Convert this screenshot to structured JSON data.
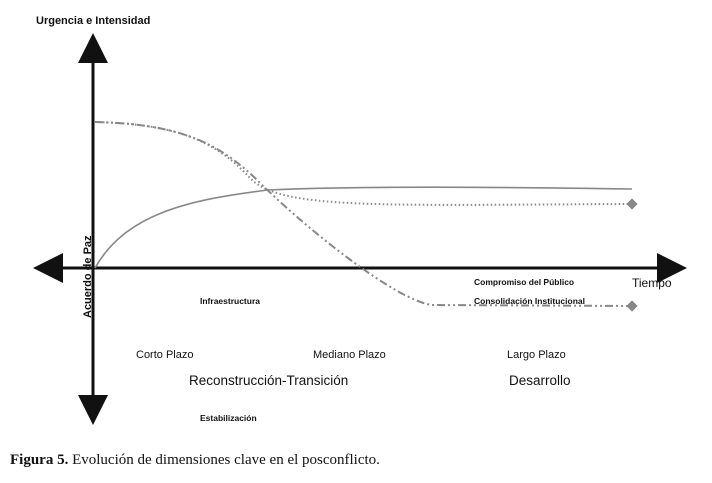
{
  "diagram": {
    "y_axis_title": "Urgencia e Intensidad",
    "x_axis_title": "Tiempo",
    "origin_label": "Acuerdo de Paz",
    "phase_labels": [
      "Corto Plazo",
      "Mediano Plazo",
      "Largo Plazo"
    ],
    "stage_labels": [
      "Reconstrucción-Transición",
      "Desarrollo"
    ],
    "curve_labels": {
      "infraestructura": "Infraestructura",
      "compromiso": "Compromiso del Público",
      "consolidacion": "Consolidación Institucional",
      "estabilizacion": "Estabilización"
    },
    "line_color": "#888888",
    "marker_color": "#888888"
  },
  "caption": {
    "prefix": "Figura 5.",
    "text": " Evolución de dimensiones clave en el posconflicto."
  }
}
